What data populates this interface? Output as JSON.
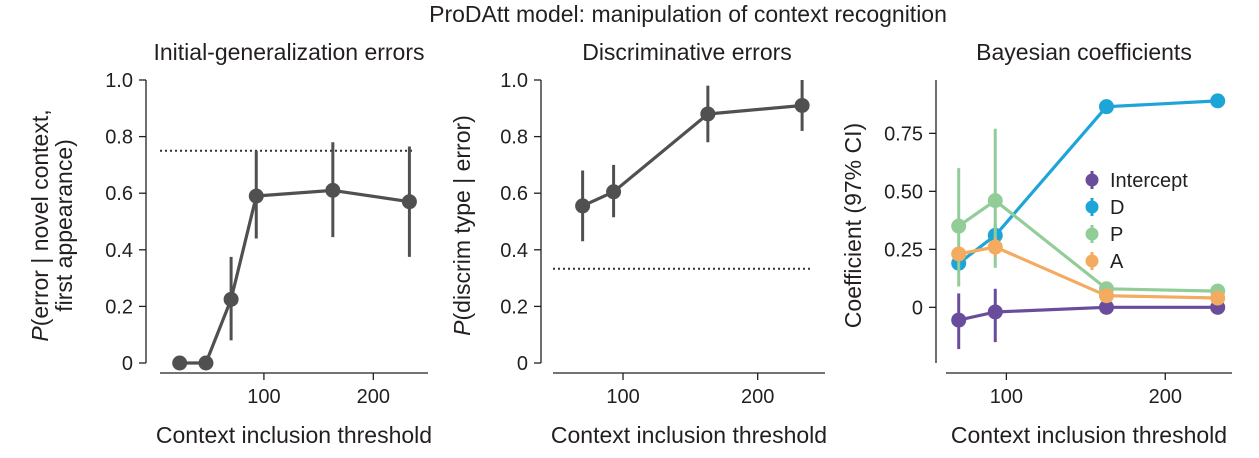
{
  "figure": {
    "title": "ProDAtt model: manipulation of context recognition"
  },
  "chart_data": [
    {
      "type": "line",
      "title": "Initial-generalization errors",
      "xlabel": "Context inclusion threshold",
      "ylabel_prefix": "P",
      "ylabel_line1": "(error | novel context,",
      "ylabel_line2": "first appearance)",
      "xlim": [
        5,
        250
      ],
      "ylim": [
        0,
        1.0
      ],
      "xticks": [
        100,
        200
      ],
      "xtick_labels": [
        "100",
        "200"
      ],
      "yticks": [
        0,
        0.2,
        0.4,
        0.6,
        0.8,
        1.0
      ],
      "ytick_labels": [
        "0",
        "0.2",
        "0.4",
        "0.6",
        "0.8",
        "1.0"
      ],
      "reference_line": 0.75,
      "series": [
        {
          "color": "#505050",
          "points": [
            {
              "x": 23,
              "y": 0.0,
              "lo": 0.0,
              "hi": 0.0
            },
            {
              "x": 47,
              "y": 0.0,
              "lo": 0.0,
              "hi": 0.0
            },
            {
              "x": 70,
              "y": 0.225,
              "lo": 0.08,
              "hi": 0.375
            },
            {
              "x": 93,
              "y": 0.59,
              "lo": 0.44,
              "hi": 0.75
            },
            {
              "x": 163,
              "y": 0.61,
              "lo": 0.445,
              "hi": 0.78
            },
            {
              "x": 233,
              "y": 0.57,
              "lo": 0.375,
              "hi": 0.765
            }
          ]
        }
      ]
    },
    {
      "type": "line",
      "title": "Discriminative errors",
      "xlabel": "Context inclusion threshold",
      "ylabel_prefix": "P",
      "ylabel_line1": "(discrim type | error)",
      "ylabel_line2": "",
      "xlim": [
        48,
        250
      ],
      "ylim": [
        0,
        1.0
      ],
      "xticks": [
        100,
        200
      ],
      "xtick_labels": [
        "100",
        "200"
      ],
      "yticks": [
        0,
        0.2,
        0.4,
        0.6,
        0.8,
        1.0
      ],
      "ytick_labels": [
        "0",
        "0.2",
        "0.4",
        "0.6",
        "0.8",
        "1.0"
      ],
      "reference_line": 0.333,
      "series": [
        {
          "color": "#505050",
          "points": [
            {
              "x": 70,
              "y": 0.555,
              "lo": 0.43,
              "hi": 0.68
            },
            {
              "x": 93,
              "y": 0.605,
              "lo": 0.515,
              "hi": 0.7
            },
            {
              "x": 163,
              "y": 0.88,
              "lo": 0.78,
              "hi": 0.98
            },
            {
              "x": 233,
              "y": 0.91,
              "lo": 0.82,
              "hi": 1.0
            }
          ]
        }
      ]
    },
    {
      "type": "line",
      "title": "Bayesian coefficients",
      "xlabel": "Context inclusion threshold",
      "ylabel_prefix": "",
      "ylabel_line1": "Coefficient (97% CI)",
      "ylabel_line2": "",
      "xlim": [
        62,
        242
      ],
      "ylim": [
        -0.24,
        0.98
      ],
      "xticks": [
        100,
        200
      ],
      "xtick_labels": [
        "100",
        "200"
      ],
      "yticks": [
        0,
        0.25,
        0.5,
        0.75
      ],
      "ytick_labels": [
        "0",
        "0.25",
        "0.50",
        "0.75"
      ],
      "legend_position": "right",
      "series": [
        {
          "name": "Intercept",
          "color": "#6a4c9c",
          "points": [
            {
              "x": 70,
              "y": -0.055,
              "lo": -0.18,
              "hi": 0.06
            },
            {
              "x": 93,
              "y": -0.02,
              "lo": -0.15,
              "hi": 0.08
            },
            {
              "x": 163,
              "y": 0.0,
              "lo": -0.01,
              "hi": 0.01
            },
            {
              "x": 233,
              "y": 0.0,
              "lo": -0.01,
              "hi": 0.01
            }
          ]
        },
        {
          "name": "D",
          "color": "#1ea5d8",
          "points": [
            {
              "x": 70,
              "y": 0.19,
              "lo": 0.16,
              "hi": 0.22
            },
            {
              "x": 93,
              "y": 0.31,
              "lo": 0.27,
              "hi": 0.36
            },
            {
              "x": 163,
              "y": 0.865,
              "lo": 0.84,
              "hi": 0.89
            },
            {
              "x": 233,
              "y": 0.89,
              "lo": 0.875,
              "hi": 0.905
            }
          ]
        },
        {
          "name": "P",
          "color": "#92cd98",
          "points": [
            {
              "x": 70,
              "y": 0.35,
              "lo": 0.09,
              "hi": 0.6
            },
            {
              "x": 93,
              "y": 0.46,
              "lo": 0.17,
              "hi": 0.77
            },
            {
              "x": 163,
              "y": 0.08,
              "lo": 0.06,
              "hi": 0.1
            },
            {
              "x": 233,
              "y": 0.07,
              "lo": 0.04,
              "hi": 0.1
            }
          ]
        },
        {
          "name": "A",
          "color": "#f3ab60",
          "points": [
            {
              "x": 70,
              "y": 0.23,
              "lo": 0.21,
              "hi": 0.26
            },
            {
              "x": 93,
              "y": 0.26,
              "lo": 0.22,
              "hi": 0.3
            },
            {
              "x": 163,
              "y": 0.05,
              "lo": 0.04,
              "hi": 0.06
            },
            {
              "x": 233,
              "y": 0.04,
              "lo": 0.03,
              "hi": 0.05
            }
          ]
        }
      ]
    }
  ]
}
